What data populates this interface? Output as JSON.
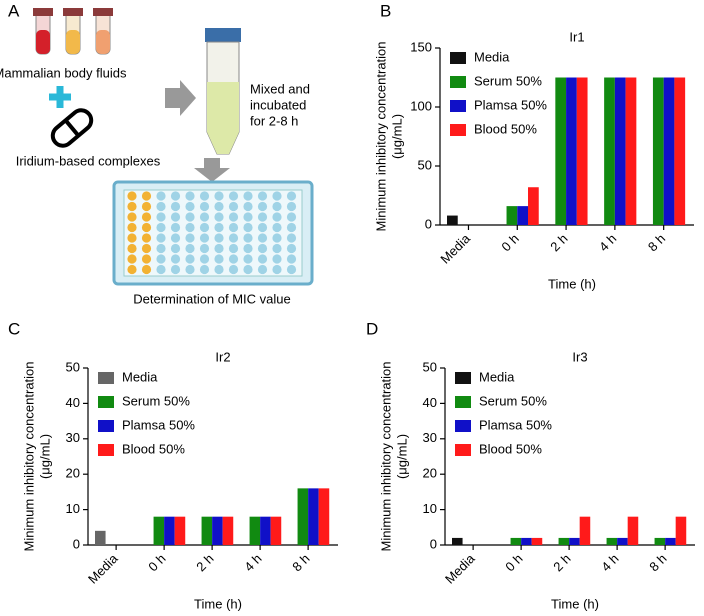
{
  "diagram": {
    "panel_label": "A",
    "fluids_label": "Mammalian body fluids",
    "complex_label": "Iridium-based complexes",
    "mix_label": [
      "Mixed and",
      "incubated",
      "for 2-8 h"
    ],
    "plate_label": "Determination of MIC value"
  },
  "chart_data": [
    {
      "type": "bar",
      "panel_label": "B",
      "title": "Ir1",
      "y_label": [
        "Minimum inhibitory concentration",
        "(μg/mL)"
      ],
      "x_label": "Time (h)",
      "categories": [
        "Media",
        "0 h",
        "2 h",
        "4 h",
        "8 h"
      ],
      "series": [
        {
          "name": "Media",
          "color": "#111111",
          "values": [
            8,
            null,
            null,
            null,
            null
          ]
        },
        {
          "name": "Serum 50%",
          "color": "#118a11",
          "values": [
            null,
            16,
            125,
            125,
            125
          ]
        },
        {
          "name": "Plamsa 50%",
          "color": "#1010c8",
          "values": [
            null,
            16,
            125,
            125,
            125
          ]
        },
        {
          "name": "Blood 50%",
          "color": "#ff1a1a",
          "values": [
            null,
            32,
            125,
            125,
            125
          ]
        }
      ],
      "ylim": [
        0,
        150
      ],
      "yticks": [
        0,
        50,
        100,
        150
      ],
      "legend": "upper-left"
    },
    {
      "type": "bar",
      "panel_label": "C",
      "title": "Ir2",
      "y_label": [
        "Minimum inhibitory concentration",
        "(μg/mL)"
      ],
      "x_label": "Time (h)",
      "categories": [
        "Media",
        "0 h",
        "2 h",
        "4 h",
        "8 h"
      ],
      "series": [
        {
          "name": "Media",
          "color": "#666666",
          "values": [
            4,
            null,
            null,
            null,
            null
          ]
        },
        {
          "name": "Serum 50%",
          "color": "#118a11",
          "values": [
            null,
            8,
            8,
            8,
            16
          ]
        },
        {
          "name": "Plamsa 50%",
          "color": "#1010c8",
          "values": [
            null,
            8,
            8,
            8,
            16
          ]
        },
        {
          "name": "Blood 50%",
          "color": "#ff1a1a",
          "values": [
            null,
            8,
            8,
            8,
            16
          ]
        }
      ],
      "ylim": [
        0,
        50
      ],
      "yticks": [
        0,
        10,
        20,
        30,
        40,
        50
      ],
      "legend": "upper-left"
    },
    {
      "type": "bar",
      "panel_label": "D",
      "title": "Ir3",
      "y_label": [
        "Minimum inhibitory concentration",
        "(μg/mL)"
      ],
      "x_label": "Time (h)",
      "categories": [
        "Media",
        "0 h",
        "2 h",
        "4 h",
        "8 h"
      ],
      "series": [
        {
          "name": "Media",
          "color": "#111111",
          "values": [
            2,
            null,
            null,
            null,
            null
          ]
        },
        {
          "name": "Serum 50%",
          "color": "#118a11",
          "values": [
            null,
            2,
            2,
            2,
            2
          ]
        },
        {
          "name": "Plamsa 50%",
          "color": "#1010c8",
          "values": [
            null,
            2,
            2,
            2,
            2
          ]
        },
        {
          "name": "Blood 50%",
          "color": "#ff1a1a",
          "values": [
            null,
            2,
            8,
            8,
            8
          ]
        }
      ],
      "ylim": [
        0,
        50
      ],
      "yticks": [
        0,
        10,
        20,
        30,
        40,
        50
      ],
      "legend": "upper-left"
    }
  ]
}
